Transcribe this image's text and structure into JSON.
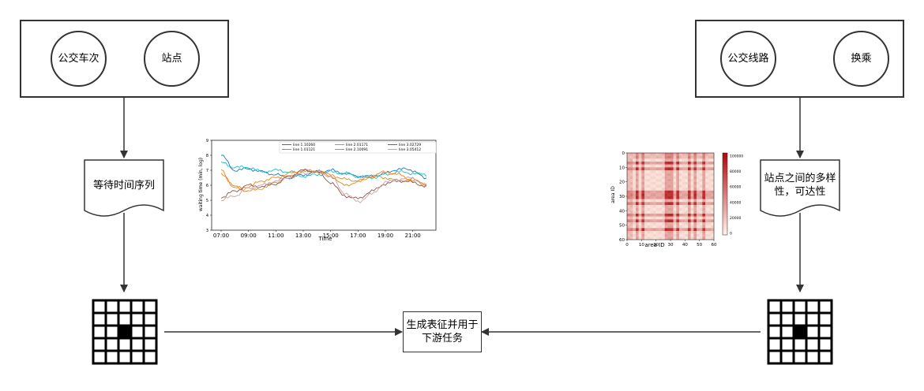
{
  "left_source": {
    "bus_trip_label": "公交车次",
    "stop_label": "站点"
  },
  "right_source": {
    "bus_route_label": "公交线路",
    "transfer_label": "换乘"
  },
  "left_doc": {
    "label": "等待时间序列"
  },
  "right_doc": {
    "label": "站点之间的多样性，可达性"
  },
  "task": {
    "label": "生成表征并用于下游任务"
  },
  "timeseries_chart": {
    "xlabel": "Time",
    "ylabel": "waiting time (min, log)",
    "x_ticks": [
      "07:00",
      "09:00",
      "11:00",
      "13:00",
      "15:00",
      "17:00",
      "19:00",
      "21:00"
    ],
    "y_ticks": [
      "3",
      "4",
      "5",
      "6",
      "7",
      "8",
      "9"
    ],
    "legend": [
      "line 1.10260",
      "line 1.01121",
      "line 2.01171",
      "line 2.10091",
      "line 3.02729",
      "line 3.05412"
    ],
    "colors": [
      "#1f77b4",
      "#17becf",
      "#ff7f0e",
      "#d98b2b",
      "#8c564b",
      "#c9a0a0"
    ]
  },
  "heatmap_chart": {
    "xlabel": "area ID",
    "ylabel": "area ID",
    "x_ticks": [
      "0",
      "10",
      "20",
      "30",
      "40",
      "50",
      "60"
    ],
    "y_ticks": [
      "0",
      "10",
      "20",
      "30",
      "40",
      "50",
      "60"
    ],
    "colorbar_ticks": [
      "100000",
      "80000",
      "60000",
      "40000",
      "20000",
      "0"
    ]
  },
  "chart_data": [
    {
      "type": "line",
      "title": "",
      "xlabel": "Time",
      "ylabel": "waiting time (min, log)",
      "x": [
        "07:00",
        "08:00",
        "09:00",
        "10:00",
        "11:00",
        "12:00",
        "13:00",
        "14:00",
        "15:00",
        "16:00",
        "17:00",
        "18:00",
        "19:00",
        "20:00",
        "21:00",
        "22:00"
      ],
      "ylim": [
        3,
        9
      ],
      "series": [
        {
          "name": "line 1.10260",
          "values": [
            8.0,
            7.0,
            7.1,
            6.9,
            6.7,
            6.5,
            6.7,
            6.9,
            7.0,
            6.8,
            6.6,
            6.6,
            6.8,
            7.1,
            7.0,
            6.4
          ]
        },
        {
          "name": "line 1.01121",
          "values": [
            7.5,
            7.2,
            7.2,
            6.9,
            7.0,
            6.9,
            6.6,
            6.7,
            6.9,
            6.8,
            6.6,
            6.5,
            6.7,
            6.9,
            6.8,
            6.7
          ]
        },
        {
          "name": "line 2.01171",
          "values": [
            7.0,
            5.8,
            5.9,
            6.3,
            6.5,
            6.8,
            7.0,
            6.9,
            6.7,
            6.4,
            6.3,
            6.6,
            6.9,
            6.7,
            6.3,
            6.1
          ]
        },
        {
          "name": "line 2.10091",
          "values": [
            6.8,
            5.9,
            5.6,
            5.8,
            6.2,
            6.6,
            6.9,
            7.0,
            6.6,
            6.0,
            6.2,
            6.6,
            6.5,
            6.3,
            6.4,
            6.0
          ]
        },
        {
          "name": "line 3.02729",
          "values": [
            5.2,
            5.6,
            6.0,
            5.9,
            6.1,
            6.6,
            7.0,
            6.9,
            6.2,
            5.3,
            5.1,
            5.6,
            6.1,
            6.3,
            6.2,
            5.9
          ]
        },
        {
          "name": "line 3.05412",
          "values": [
            5.0,
            5.3,
            5.8,
            6.0,
            6.3,
            6.5,
            6.8,
            6.9,
            6.6,
            5.5,
            4.9,
            5.4,
            6.2,
            6.4,
            6.5,
            6.0
          ]
        }
      ]
    },
    {
      "type": "heatmap",
      "title": "",
      "xlabel": "area ID",
      "ylabel": "area ID",
      "xlim": [
        0,
        60
      ],
      "ylim": [
        0,
        60
      ],
      "colorbar_range": [
        0,
        100000
      ]
    }
  ]
}
